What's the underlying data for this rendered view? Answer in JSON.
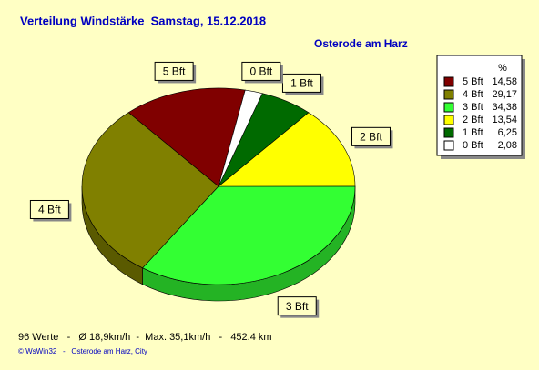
{
  "chart_data": {
    "type": "pie",
    "title": "Verteilung Windstärke  Samstag, 15.12.2018",
    "subtitle": "Osterode am Harz",
    "categories": [
      "5 Bft",
      "4 Bft",
      "3 Bft",
      "2 Bft",
      "1 Bft",
      "0 Bft"
    ],
    "values": [
      14.58,
      29.17,
      34.38,
      13.54,
      6.25,
      2.08
    ],
    "value_labels": [
      "14,58",
      "29,17",
      "34,38",
      "13,54",
      "6,25",
      "2,08"
    ],
    "colors": [
      "#800000",
      "#808000",
      "#33ff33",
      "#ffff00",
      "#006a00",
      "#ffffff"
    ],
    "legend_title": "%",
    "footer": "96 Werte   -   Ø 18,9km/h  -  Max. 35,1km/h   -   452.4 km",
    "credit": "© WsWin32   -   Osterode am Harz, City"
  }
}
